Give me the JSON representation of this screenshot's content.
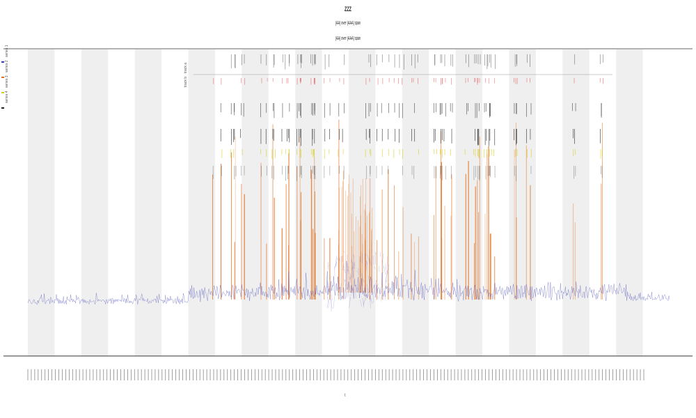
{
  "chart_data": {
    "type": "line",
    "title": "ZZZ",
    "subtitle_1": "[AA] over [AAA] span",
    "subtitle_2": "[AA] over [AAA] span",
    "xlabel": "t",
    "ylabel": "",
    "legend": [
      {
        "name": "series 1",
        "color": "#3a3ab0"
      },
      {
        "name": "series 2",
        "color": "#e07020"
      },
      {
        "name": "series 3",
        "color": "#d6cf20"
      },
      {
        "name": "series 4",
        "color": "#222222"
      }
    ],
    "track_labels": [
      "track a",
      "track b"
    ],
    "band_count": 12,
    "x_tick_count": 180,
    "ylim": [
      0,
      1
    ],
    "grid": false,
    "legend_position": "left"
  },
  "colors": {
    "band": "#efefef",
    "baseline": "#3a3ab0",
    "spike": "#e07020",
    "marker": "#222222",
    "yellow": "#d6cf20"
  }
}
